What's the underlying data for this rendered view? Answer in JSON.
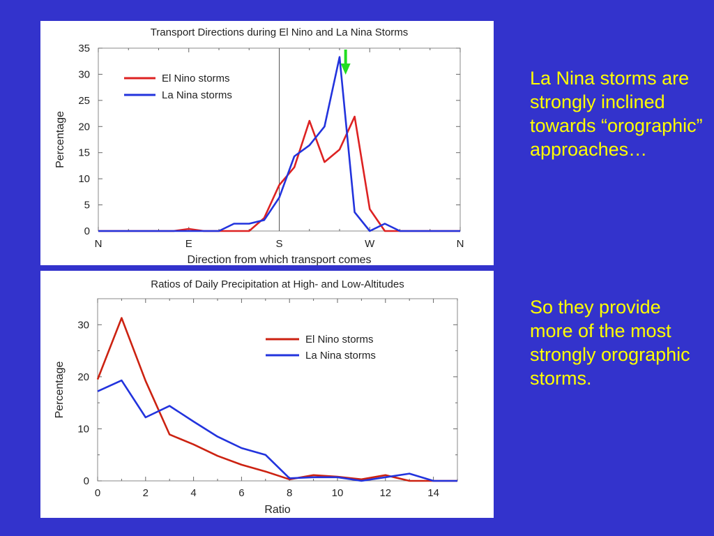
{
  "slide": {
    "text_1": "La Nina storms are strongly inclined towards “orographic” approaches…",
    "text_2": "So they provide more of the most strongly orographic storms.",
    "background_color": "#3333cc",
    "text_color": "#ffff00"
  },
  "chart_data": [
    {
      "type": "line",
      "title": "Transport Directions during El Nino and La Nina Storms",
      "xlabel": "Direction from which transport comes",
      "ylabel": "Percentage",
      "xlim": [
        0,
        24
      ],
      "ylim": [
        0,
        35
      ],
      "x_ticks": [
        0,
        6,
        12,
        18,
        24
      ],
      "x_tick_labels": [
        "N",
        "E",
        "S",
        "W",
        "N"
      ],
      "y_ticks": [
        0,
        5,
        10,
        15,
        20,
        25,
        30,
        35
      ],
      "vertical_reference_line_x": 12,
      "arrow_annotation": {
        "x": 16.4,
        "color": "#22dd22",
        "direction": "down"
      },
      "legend": "top-left",
      "grid": false,
      "series": [
        {
          "name": "El Nino storms",
          "color": "#dd2222",
          "x": [
            0,
            1,
            2,
            3,
            4,
            5,
            6,
            7,
            8,
            9,
            10,
            11,
            12,
            13,
            14,
            15,
            16,
            17,
            18,
            19,
            20,
            21,
            22,
            23,
            24
          ],
          "values": [
            0,
            0,
            0,
            0,
            0,
            0,
            0.4,
            0,
            0,
            0,
            0,
            2.5,
            8.8,
            12.2,
            21.1,
            13.2,
            15.6,
            21.9,
            4.2,
            0,
            0,
            0,
            0,
            0,
            0
          ]
        },
        {
          "name": "La Nina storms",
          "color": "#2233dd",
          "x": [
            0,
            1,
            2,
            3,
            4,
            5,
            6,
            7,
            8,
            9,
            10,
            11,
            12,
            13,
            14,
            15,
            16,
            17,
            18,
            19,
            20,
            21,
            22,
            23,
            24
          ],
          "values": [
            0,
            0,
            0,
            0,
            0,
            0,
            0,
            0,
            0,
            1.4,
            1.4,
            2.1,
            6.4,
            14.3,
            16.4,
            20.0,
            33.3,
            3.6,
            0,
            1.4,
            0,
            0,
            0,
            0,
            0
          ]
        }
      ]
    },
    {
      "type": "line",
      "title": "Ratios of Daily Precipitation at High- and Low-Altitudes",
      "xlabel": "Ratio",
      "ylabel": "Percentage",
      "xlim": [
        0,
        15
      ],
      "ylim": [
        0,
        35
      ],
      "x_ticks": [
        0,
        2,
        4,
        6,
        8,
        10,
        12,
        14
      ],
      "y_ticks": [
        0,
        10,
        20,
        30
      ],
      "legend": "top-right",
      "grid": false,
      "series": [
        {
          "name": "El Nino storms",
          "color": "#cc2211",
          "x": [
            0,
            1,
            2,
            3,
            4,
            5,
            6,
            7,
            8,
            9,
            10,
            11,
            12,
            13,
            14,
            15
          ],
          "values": [
            19.5,
            31.3,
            19.2,
            8.9,
            7.0,
            4.8,
            3.1,
            1.8,
            0.3,
            1.1,
            0.8,
            0.3,
            1.1,
            0,
            0,
            0
          ]
        },
        {
          "name": "La Nina storms",
          "color": "#2233dd",
          "x": [
            0,
            1,
            2,
            3,
            4,
            5,
            6,
            7,
            8,
            9,
            10,
            11,
            12,
            13,
            14,
            15
          ],
          "values": [
            17.2,
            19.3,
            12.2,
            14.4,
            11.4,
            8.5,
            6.3,
            5.0,
            0.5,
            0.7,
            0.7,
            0,
            0.7,
            1.4,
            0,
            0
          ]
        }
      ]
    }
  ]
}
